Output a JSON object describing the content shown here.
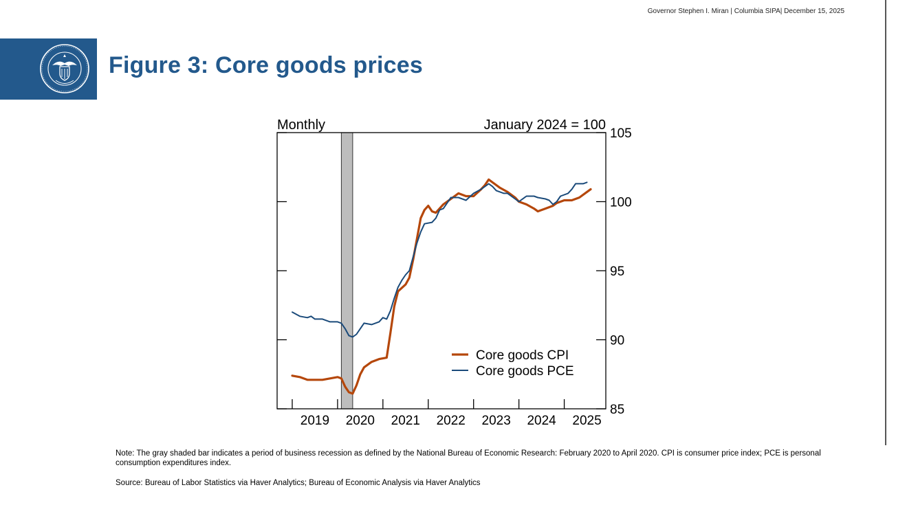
{
  "header": {
    "meta": "Governor Stephen I. Miran | Columbia SIPA| December 15, 2025",
    "title": "Figure 3: Core goods prices"
  },
  "seal": {
    "icon": "federal-reserve-seal-icon"
  },
  "chart_data": {
    "type": "line",
    "frequency_label": "Monthly",
    "index_label": "January 2024 = 100",
    "y_axis_side": "right",
    "ylim": [
      85,
      105
    ],
    "y_ticks": [
      85,
      90,
      95,
      100,
      105
    ],
    "xlim": [
      "2018-09",
      "2025-12"
    ],
    "x_tick_labels": [
      "2019",
      "2020",
      "2021",
      "2022",
      "2023",
      "2024",
      "2025"
    ],
    "grid": false,
    "legend_placement": "bottom-right",
    "recession": {
      "start": "2020-02",
      "end": "2020-04",
      "color": "#bdbdbd"
    },
    "series": [
      {
        "name": "Core goods CPI",
        "color": "#b5470b",
        "points": [
          [
            "2019-01",
            87.4
          ],
          [
            "2019-03",
            87.3
          ],
          [
            "2019-05",
            87.1
          ],
          [
            "2019-07",
            87.1
          ],
          [
            "2019-09",
            87.1
          ],
          [
            "2019-11",
            87.2
          ],
          [
            "2020-01",
            87.3
          ],
          [
            "2020-02",
            87.2
          ],
          [
            "2020-03",
            86.6
          ],
          [
            "2020-04",
            86.2
          ],
          [
            "2020-05",
            86.1
          ],
          [
            "2020-06",
            86.7
          ],
          [
            "2020-07",
            87.5
          ],
          [
            "2020-08",
            88.0
          ],
          [
            "2020-10",
            88.4
          ],
          [
            "2020-12",
            88.6
          ],
          [
            "2021-02",
            88.7
          ],
          [
            "2021-03",
            90.5
          ],
          [
            "2021-04",
            92.4
          ],
          [
            "2021-05",
            93.5
          ],
          [
            "2021-07",
            94.0
          ],
          [
            "2021-08",
            94.5
          ],
          [
            "2021-09",
            95.8
          ],
          [
            "2021-10",
            97.3
          ],
          [
            "2021-11",
            98.8
          ],
          [
            "2021-12",
            99.4
          ],
          [
            "2022-01",
            99.7
          ],
          [
            "2022-02",
            99.3
          ],
          [
            "2022-03",
            99.2
          ],
          [
            "2022-05",
            99.8
          ],
          [
            "2022-07",
            100.2
          ],
          [
            "2022-09",
            100.6
          ],
          [
            "2022-11",
            100.4
          ],
          [
            "2023-01",
            100.4
          ],
          [
            "2023-03",
            100.9
          ],
          [
            "2023-04",
            101.2
          ],
          [
            "2023-05",
            101.6
          ],
          [
            "2023-06",
            101.4
          ],
          [
            "2023-08",
            101.0
          ],
          [
            "2023-10",
            100.7
          ],
          [
            "2023-12",
            100.3
          ],
          [
            "2024-01",
            100.0
          ],
          [
            "2024-03",
            99.8
          ],
          [
            "2024-05",
            99.5
          ],
          [
            "2024-06",
            99.3
          ],
          [
            "2024-08",
            99.5
          ],
          [
            "2024-10",
            99.7
          ],
          [
            "2024-11",
            99.9
          ],
          [
            "2025-01",
            100.1
          ],
          [
            "2025-03",
            100.1
          ],
          [
            "2025-05",
            100.3
          ],
          [
            "2025-07",
            100.7
          ],
          [
            "2025-08",
            100.9
          ]
        ]
      },
      {
        "name": "Core goods PCE",
        "color": "#1a4a7a",
        "points": [
          [
            "2019-01",
            92.0
          ],
          [
            "2019-03",
            91.7
          ],
          [
            "2019-05",
            91.6
          ],
          [
            "2019-06",
            91.7
          ],
          [
            "2019-07",
            91.5
          ],
          [
            "2019-09",
            91.5
          ],
          [
            "2019-11",
            91.3
          ],
          [
            "2020-01",
            91.3
          ],
          [
            "2020-02",
            91.2
          ],
          [
            "2020-03",
            90.8
          ],
          [
            "2020-04",
            90.3
          ],
          [
            "2020-05",
            90.2
          ],
          [
            "2020-06",
            90.4
          ],
          [
            "2020-07",
            90.8
          ],
          [
            "2020-08",
            91.2
          ],
          [
            "2020-10",
            91.1
          ],
          [
            "2020-12",
            91.3
          ],
          [
            "2021-01",
            91.6
          ],
          [
            "2021-02",
            91.5
          ],
          [
            "2021-03",
            92.1
          ],
          [
            "2021-04",
            93.0
          ],
          [
            "2021-05",
            93.8
          ],
          [
            "2021-06",
            94.3
          ],
          [
            "2021-07",
            94.7
          ],
          [
            "2021-08",
            95.0
          ],
          [
            "2021-09",
            96.0
          ],
          [
            "2021-10",
            97.0
          ],
          [
            "2021-11",
            97.8
          ],
          [
            "2021-12",
            98.4
          ],
          [
            "2022-02",
            98.5
          ],
          [
            "2022-03",
            98.8
          ],
          [
            "2022-04",
            99.4
          ],
          [
            "2022-05",
            99.5
          ],
          [
            "2022-07",
            100.3
          ],
          [
            "2022-09",
            100.3
          ],
          [
            "2022-11",
            100.1
          ],
          [
            "2023-01",
            100.6
          ],
          [
            "2023-03",
            100.9
          ],
          [
            "2023-05",
            101.3
          ],
          [
            "2023-06",
            101.1
          ],
          [
            "2023-07",
            100.8
          ],
          [
            "2023-09",
            100.6
          ],
          [
            "2023-10",
            100.6
          ],
          [
            "2023-12",
            100.2
          ],
          [
            "2024-01",
            100.0
          ],
          [
            "2024-03",
            100.4
          ],
          [
            "2024-05",
            100.4
          ],
          [
            "2024-06",
            100.3
          ],
          [
            "2024-08",
            100.2
          ],
          [
            "2024-09",
            100.1
          ],
          [
            "2024-10",
            99.8
          ],
          [
            "2024-11",
            100.0
          ],
          [
            "2024-12",
            100.4
          ],
          [
            "2025-02",
            100.6
          ],
          [
            "2025-03",
            100.9
          ],
          [
            "2025-04",
            101.3
          ],
          [
            "2025-06",
            101.3
          ],
          [
            "2025-07",
            101.4
          ]
        ]
      }
    ]
  },
  "note": "Note: The gray shaded bar indicates a period of business recession as defined by the National Bureau of Economic Research: February 2020 to April 2020. CPI is consumer price index; PCE is personal consumption expenditures index.",
  "source": "Source: Bureau of Labor Statistics via Haver Analytics;  Bureau of Economic Analysis via Haver Analytics"
}
